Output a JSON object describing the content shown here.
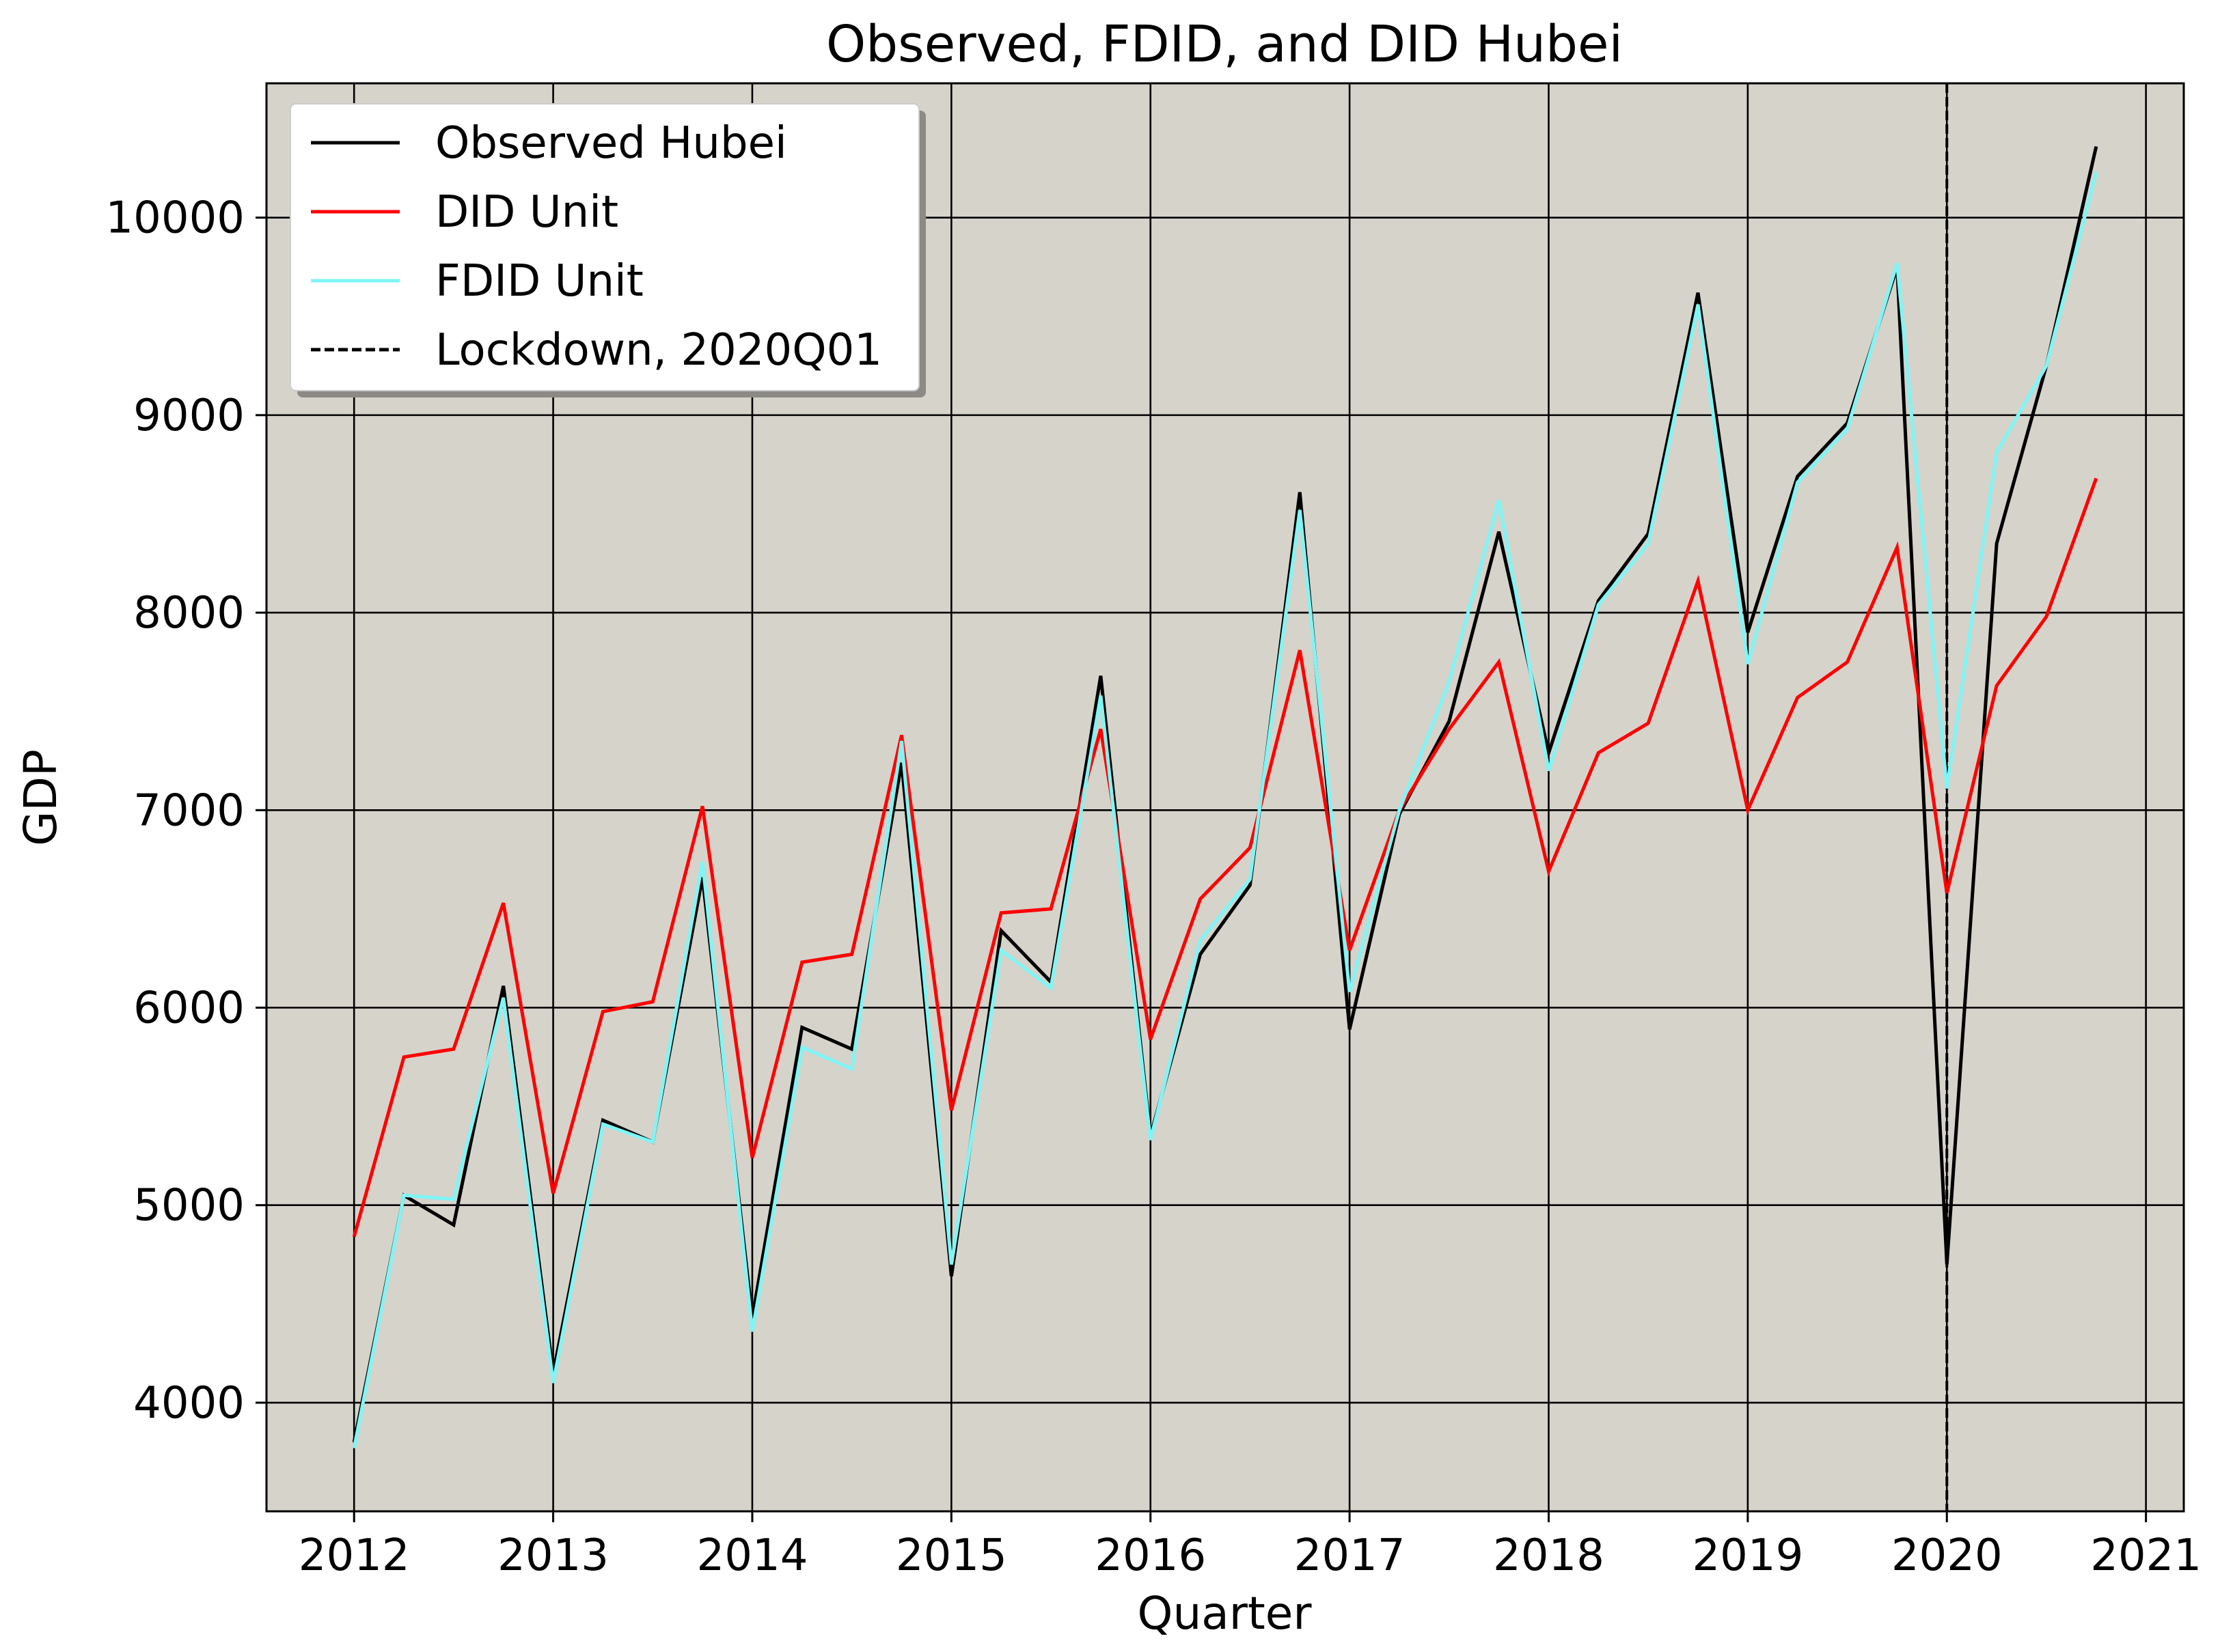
{
  "chart_data": {
    "type": "line",
    "title": "Observed, FDID, and DID Hubei",
    "xlabel": "Quarter",
    "ylabel": "GDP",
    "xlim": [
      2011.56,
      2021.19
    ],
    "ylim": [
      3450,
      10680
    ],
    "xticks": [
      2012,
      2013,
      2014,
      2015,
      2016,
      2017,
      2018,
      2019,
      2020,
      2021
    ],
    "yticks": [
      4000,
      5000,
      6000,
      7000,
      8000,
      9000,
      10000
    ],
    "grid": true,
    "background_color": "#d6d3cb",
    "legend_position": "top-left",
    "x": [
      2012.0,
      2012.25,
      2012.5,
      2012.75,
      2013.0,
      2013.25,
      2013.5,
      2013.75,
      2014.0,
      2014.25,
      2014.5,
      2014.75,
      2015.0,
      2015.25,
      2015.5,
      2015.75,
      2016.0,
      2016.25,
      2016.5,
      2016.75,
      2017.0,
      2017.25,
      2017.5,
      2017.75,
      2018.0,
      2018.25,
      2018.5,
      2018.75,
      2019.0,
      2019.25,
      2019.5,
      2019.75,
      2020.0,
      2020.25,
      2020.5,
      2020.75
    ],
    "series": [
      {
        "name": "Observed Hubei",
        "color": "#000000",
        "values": [
          3800,
          5050,
          4900,
          6110,
          4150,
          5430,
          5320,
          6660,
          4430,
          5900,
          5790,
          7240,
          4640,
          6390,
          6130,
          7680,
          5350,
          6270,
          6620,
          8610,
          5890,
          6980,
          7450,
          8410,
          7290,
          8060,
          8400,
          9620,
          7900,
          8690,
          8960,
          9750,
          4700,
          8350,
          9250,
          10360
        ]
      },
      {
        "name": "DID Unit",
        "color": "#ff0000",
        "values": [
          4840,
          5750,
          5790,
          6530,
          5060,
          5980,
          6030,
          7020,
          5240,
          6230,
          6270,
          7380,
          5480,
          6480,
          6500,
          7410,
          5840,
          6550,
          6810,
          7810,
          6290,
          7000,
          7410,
          7750,
          6690,
          7290,
          7440,
          8160,
          7000,
          7570,
          7750,
          8330,
          6580,
          7630,
          7980,
          8680
        ]
      },
      {
        "name": "FDID Unit",
        "color": "#7ff5f5",
        "values": [
          3770,
          5050,
          5030,
          6050,
          4100,
          5410,
          5320,
          6740,
          4360,
          5800,
          5690,
          7350,
          4700,
          6290,
          6100,
          7580,
          5330,
          6340,
          6650,
          8520,
          6080,
          7000,
          7650,
          8570,
          7200,
          8040,
          8350,
          9560,
          7740,
          8660,
          8930,
          9770,
          7110,
          8810,
          9250,
          10230
        ]
      }
    ],
    "vline": {
      "name": "Lockdown, 2020Q01",
      "x": 2020.0,
      "color": "#000000",
      "style": "dashed"
    }
  }
}
